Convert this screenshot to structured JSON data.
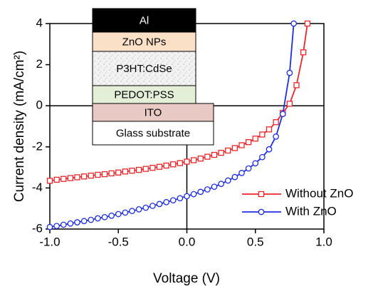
{
  "chart_data": {
    "type": "line",
    "xlabel": "Voltage  (V)",
    "ylabel": "Current density  (mA/cm²)",
    "xlim": [
      -1.0,
      1.0
    ],
    "ylim": [
      -6,
      4
    ],
    "xticks": [
      {
        "value": -1.0,
        "label": "-1.0"
      },
      {
        "value": -0.5,
        "label": "-0.5"
      },
      {
        "value": 0.0,
        "label": "0.0"
      },
      0.5,
      {
        "value": 1.0,
        "label": "1.0"
      }
    ],
    "yticks": [
      -6,
      -4,
      -2,
      0,
      2,
      4
    ],
    "legend": "lower right",
    "series": [
      {
        "name": "Without ZnO",
        "color": "#e8262b",
        "marker": "square",
        "x": [
          -1.0,
          -0.95,
          -0.9,
          -0.85,
          -0.8,
          -0.75,
          -0.7,
          -0.65,
          -0.6,
          -0.55,
          -0.5,
          -0.45,
          -0.4,
          -0.35,
          -0.3,
          -0.25,
          -0.2,
          -0.15,
          -0.1,
          -0.05,
          0,
          0.05,
          0.1,
          0.15,
          0.2,
          0.25,
          0.3,
          0.35,
          0.4,
          0.45,
          0.5,
          0.55,
          0.6,
          0.65,
          0.7,
          0.75,
          0.8,
          0.85,
          0.88
        ],
        "values": [
          -3.65,
          -3.6,
          -3.56,
          -3.52,
          -3.48,
          -3.44,
          -3.4,
          -3.36,
          -3.33,
          -3.29,
          -3.25,
          -3.2,
          -3.16,
          -3.12,
          -3.07,
          -3.02,
          -2.97,
          -2.91,
          -2.85,
          -2.79,
          -2.72,
          -2.65,
          -2.57,
          -2.48,
          -2.39,
          -2.29,
          -2.18,
          -2.06,
          -1.92,
          -1.77,
          -1.6,
          -1.4,
          -1.15,
          -0.8,
          -0.35,
          0.1,
          1.0,
          2.6,
          4.0
        ]
      },
      {
        "name": "With ZnO",
        "color": "#1f2ee0",
        "marker": "circle",
        "x": [
          -1.0,
          -0.95,
          -0.9,
          -0.85,
          -0.8,
          -0.75,
          -0.7,
          -0.65,
          -0.6,
          -0.55,
          -0.5,
          -0.45,
          -0.4,
          -0.35,
          -0.3,
          -0.25,
          -0.2,
          -0.15,
          -0.1,
          -0.05,
          0,
          0.05,
          0.1,
          0.15,
          0.2,
          0.25,
          0.3,
          0.35,
          0.4,
          0.45,
          0.5,
          0.55,
          0.6,
          0.65,
          0.7,
          0.75,
          0.78
        ],
        "values": [
          -5.9,
          -5.85,
          -5.79,
          -5.73,
          -5.67,
          -5.61,
          -5.55,
          -5.48,
          -5.42,
          -5.35,
          -5.27,
          -5.2,
          -5.12,
          -5.04,
          -4.96,
          -4.87,
          -4.78,
          -4.69,
          -4.6,
          -4.5,
          -4.4,
          -4.3,
          -4.19,
          -4.07,
          -3.94,
          -3.8,
          -3.64,
          -3.47,
          -3.27,
          -3.05,
          -2.8,
          -2.5,
          -2.12,
          -1.5,
          -0.4,
          1.6,
          4.0
        ]
      }
    ],
    "inset": [
      {
        "label": "Al",
        "color": "#000000"
      },
      {
        "label": "ZnO NPs",
        "color": "#fbe0c8"
      },
      {
        "label": "P3HT:CdSe",
        "color": "speckle"
      },
      {
        "label": "PEDOT:PSS",
        "color": "#e4efd8"
      },
      {
        "label": "ITO",
        "color": "#e8c9c4"
      },
      {
        "label": "Glass substrate",
        "color": "#ffffff"
      }
    ]
  }
}
